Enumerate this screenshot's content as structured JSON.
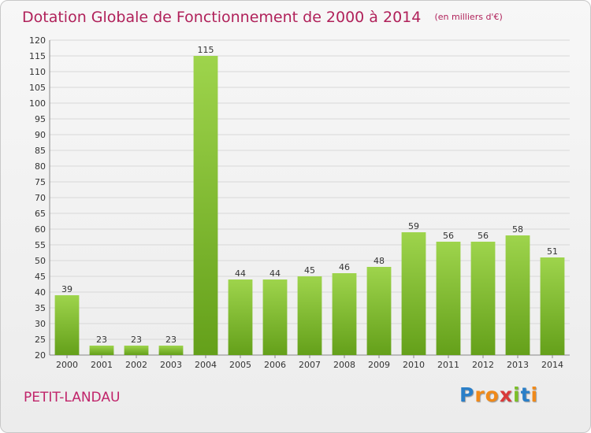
{
  "title": "Dotation Globale de Fonctionnement de 2000 à 2014",
  "subtitle": "(en milliers d'€)",
  "place": "PETIT-LANDAU",
  "brand": {
    "text": "Proxiti",
    "letters": [
      "P",
      "r",
      "o",
      "x",
      "i",
      "t",
      "i"
    ],
    "colors": [
      "blue",
      "orange",
      "orange",
      "red",
      "green",
      "blue",
      "orange"
    ]
  },
  "colors": {
    "bar_light": "#9ed44c",
    "bar_dark": "#64a01a",
    "title": "#b0215a",
    "place": "#c0246a",
    "grid": "#d8d8d8"
  },
  "chart_data": {
    "type": "bar",
    "categories": [
      "2000",
      "2001",
      "2002",
      "2003",
      "2004",
      "2005",
      "2006",
      "2007",
      "2008",
      "2009",
      "2010",
      "2011",
      "2012",
      "2013",
      "2014"
    ],
    "values": [
      39,
      23,
      23,
      23,
      115,
      44,
      44,
      45,
      46,
      48,
      59,
      56,
      56,
      58,
      51
    ],
    "title": "Dotation Globale de Fonctionnement de 2000 à 2014",
    "subtitle": "(en milliers d'€)",
    "xlabel": "",
    "ylabel": "",
    "ylim": [
      20,
      120
    ],
    "ytick_step": 5,
    "grid": true,
    "data_labels": true
  }
}
